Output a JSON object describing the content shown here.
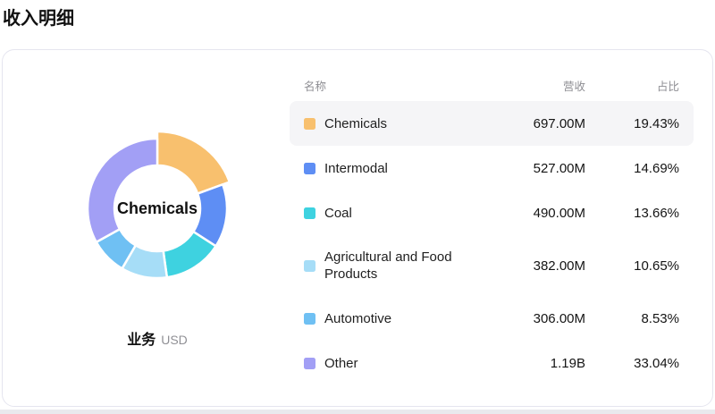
{
  "page": {
    "title": "收入明细"
  },
  "chart": {
    "center_label": "Chemicals",
    "footer": {
      "dimension": "业务",
      "unit": "USD"
    }
  },
  "table": {
    "headers": {
      "name": "名称",
      "revenue": "营收",
      "share": "占比"
    }
  },
  "chart_data": {
    "type": "pie",
    "title": "收入明细",
    "donut": true,
    "legend_position": "right-table",
    "selected": "Chemicals",
    "start_angle_deg": 0,
    "direction": "clockwise",
    "inner_radius_px": 48,
    "outer_radius_px": 78,
    "selected_outer_radius_px": 86,
    "series": [
      {
        "name": "Chemicals",
        "revenue": "697.00M",
        "share": "19.43%",
        "value": 19.43,
        "color": "#f8c06e"
      },
      {
        "name": "Intermodal",
        "revenue": "527.00M",
        "share": "14.69%",
        "value": 14.69,
        "color": "#5e8ef4"
      },
      {
        "name": "Coal",
        "revenue": "490.00M",
        "share": "13.66%",
        "value": 13.66,
        "color": "#3ed2e0"
      },
      {
        "name": "Agricultural and Food Products",
        "revenue": "382.00M",
        "share": "10.65%",
        "value": 10.65,
        "color": "#a6ddf7"
      },
      {
        "name": "Automotive",
        "revenue": "306.00M",
        "share": "8.53%",
        "value": 8.53,
        "color": "#6fc0f3"
      },
      {
        "name": "Other",
        "revenue": "1.19B",
        "share": "33.04%",
        "value": 33.04,
        "color": "#a29ff5"
      }
    ]
  }
}
